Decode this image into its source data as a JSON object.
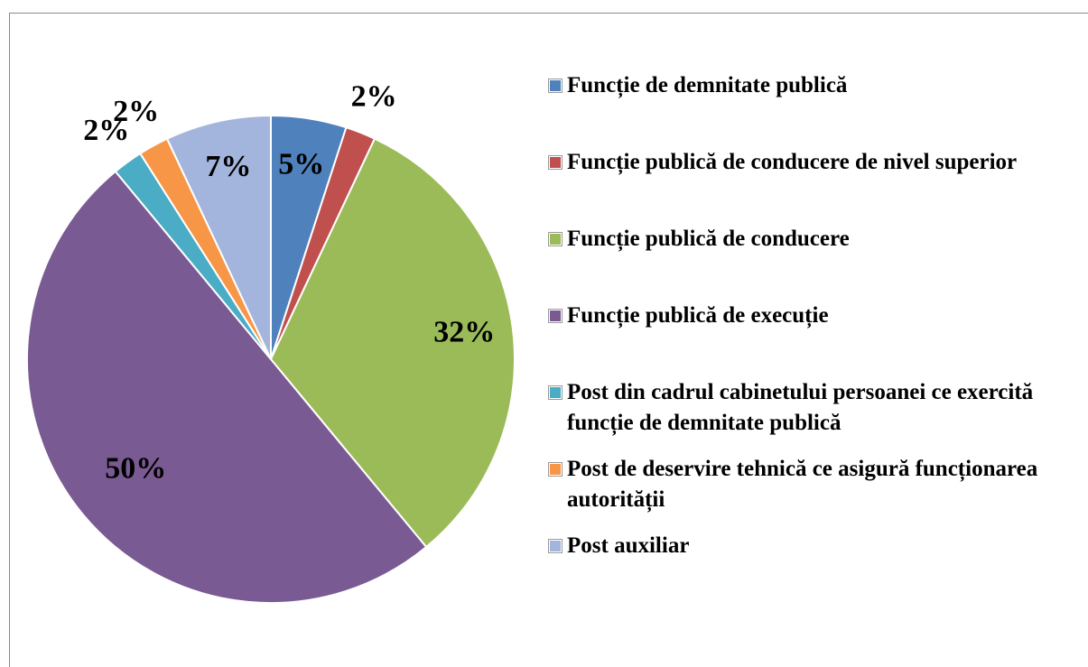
{
  "chart_data": {
    "type": "pie",
    "categories": [
      "Funcție de demnitate publică",
      "Funcție publică de conducere de nivel superior",
      "Funcție publică de conducere",
      "Funcție publică de execuție",
      "Post din cadrul cabinetului persoanei ce exercită funcție de demnitate publică",
      "Post de deservire tehnică ce asigură funcționarea autorității",
      "Post auxiliar"
    ],
    "values": [
      5,
      2,
      32,
      50,
      2,
      2,
      7
    ],
    "value_labels": [
      "5%",
      "2%",
      "32%",
      "50%",
      "2%",
      "2%",
      "7%"
    ],
    "colors": [
      "#4f81bd",
      "#c0504d",
      "#9bbb59",
      "#7a5a93",
      "#4bacc6",
      "#f79646",
      "#a3b5dc"
    ],
    "legend": "right"
  }
}
